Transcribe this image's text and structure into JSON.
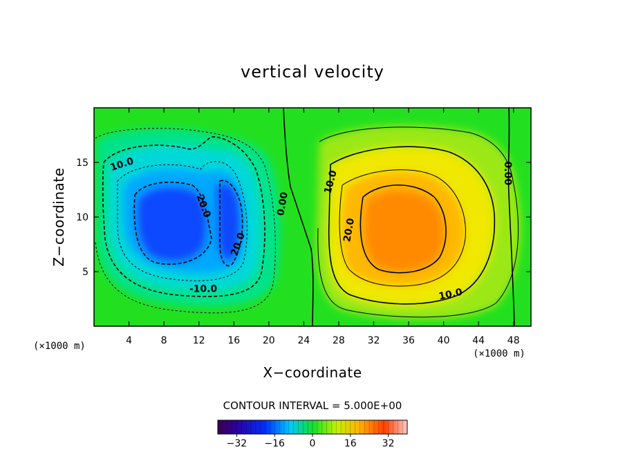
{
  "chart_data": {
    "type": "heatmap",
    "title": "vertical velocity",
    "xlabel": "X−coordinate",
    "ylabel": "Z−coordinate",
    "x_unit_label": "(×1000 m)",
    "y_unit_label": "(×1000 m)",
    "xlim": [
      0,
      50
    ],
    "ylim": [
      0,
      20
    ],
    "x_ticks": [
      4,
      8,
      12,
      16,
      20,
      24,
      28,
      32,
      36,
      40,
      44,
      48
    ],
    "y_ticks": [
      5,
      10,
      15
    ],
    "contour_interval_text": "CONTOUR INTERVAL = 5.000E+00",
    "contour_interval": 5,
    "colorbar": {
      "range": [
        -40,
        40
      ],
      "ticks": [
        -32,
        -16,
        0,
        16,
        32
      ],
      "tick_labels": [
        "−32",
        "−16",
        "0",
        "16",
        "32"
      ]
    },
    "colors": {
      "background_field": "#1be01b",
      "negative_core": "#0a3cff",
      "positive_core": "#ff8a00"
    },
    "cells": [
      {
        "name": "downdraft-left",
        "x": 9,
        "z": 9.5,
        "peak": -28
      },
      {
        "name": "downdraft-right",
        "x": 15.5,
        "z": 9,
        "peak": -24
      },
      {
        "name": "updraft",
        "x": 34,
        "z": 9,
        "peak": 26
      }
    ],
    "contour_labels": [
      {
        "text": "10.0",
        "x": 3.2,
        "z": 14.8,
        "rotate": -18
      },
      {
        "text": "20.0",
        "x": 12.5,
        "z": 11.0,
        "rotate": 70
      },
      {
        "text": "20.0",
        "x": 16.5,
        "z": 7.5,
        "rotate": -70
      },
      {
        "text": "-10.0",
        "x": 12.5,
        "z": 3.4,
        "rotate": 0
      },
      {
        "text": "0.00",
        "x": 21.6,
        "z": 11.2,
        "rotate": -80
      },
      {
        "text": "10.0",
        "x": 27.1,
        "z": 13.2,
        "rotate": -75
      },
      {
        "text": "20.0",
        "x": 29.2,
        "z": 8.8,
        "rotate": -80
      },
      {
        "text": "10.0",
        "x": 40.8,
        "z": 2.9,
        "rotate": -12
      },
      {
        "text": "0.00",
        "x": 47.3,
        "z": 14.0,
        "rotate": 90
      }
    ]
  }
}
